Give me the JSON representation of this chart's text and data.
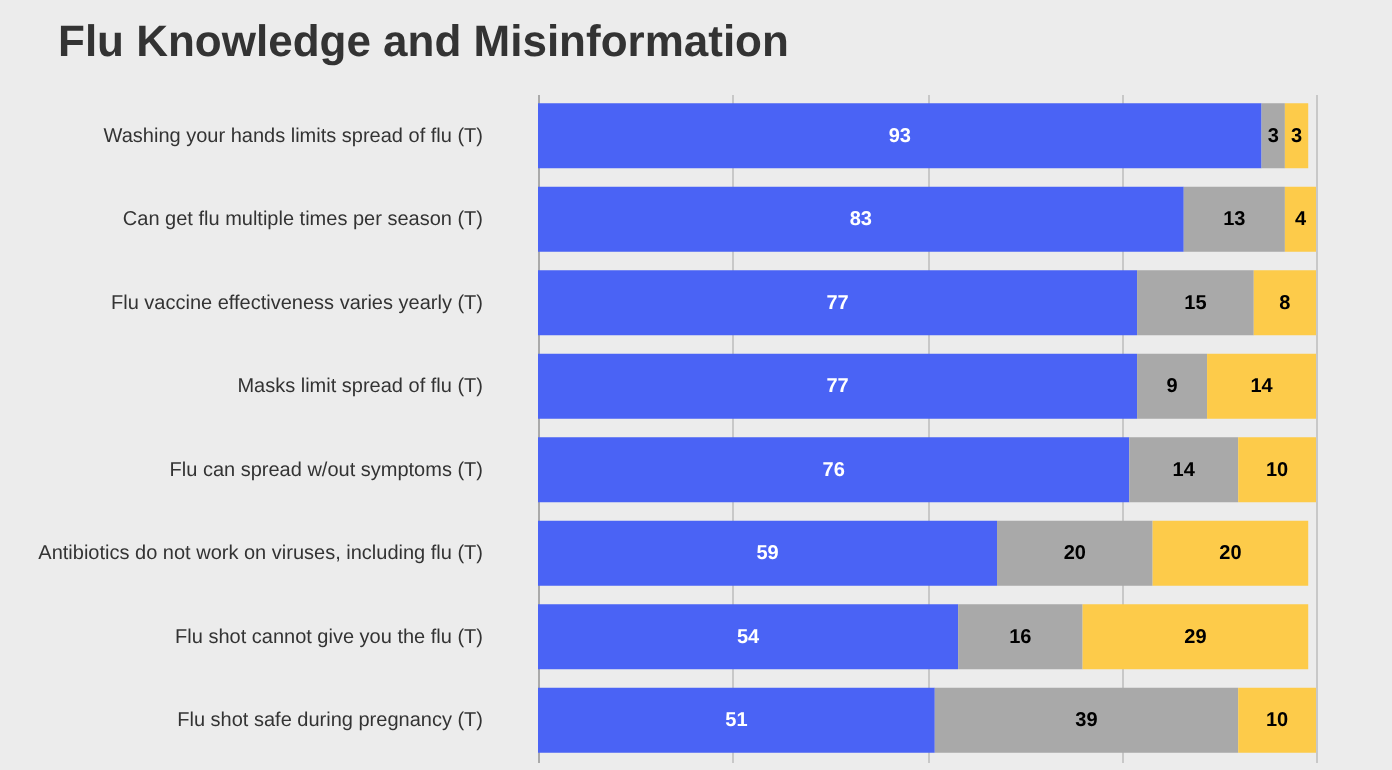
{
  "chart_data": {
    "type": "bar",
    "orientation": "horizontal",
    "stacked": true,
    "title": "Flu Knowledge and Misinformation",
    "categories": [
      "Washing your hands limits spread of flu (T)",
      "Can get flu multiple times per season (T)",
      "Flu vaccine effectiveness varies yearly (T)",
      "Masks limit spread of flu (T)",
      "Flu can spread w/out symptoms (T)",
      "Antibiotics do not work on viruses, including flu (T)",
      "Flu shot cannot give you the flu (T)",
      "Flu shot safe during pregnancy (T)"
    ],
    "series": [
      {
        "color": "#4a63f5",
        "values": [
          93,
          83,
          77,
          77,
          76,
          59,
          54,
          51
        ]
      },
      {
        "color": "#a9a9a9",
        "values": [
          3,
          13,
          15,
          9,
          14,
          20,
          16,
          39
        ]
      },
      {
        "color": "#fdcb4a",
        "values": [
          3,
          4,
          8,
          14,
          10,
          20,
          29,
          10
        ]
      }
    ],
    "xlim": [
      0,
      100
    ],
    "xticks": [
      {
        "value": 0,
        "label": null
      },
      {
        "value": 25,
        "label": null
      },
      {
        "value": 50,
        "label": null
      },
      {
        "value": 75,
        "label": null
      },
      {
        "value": 100,
        "label": null
      }
    ],
    "grid": "x",
    "tick_labels": "y",
    "data_labels": true,
    "legend": false
  }
}
